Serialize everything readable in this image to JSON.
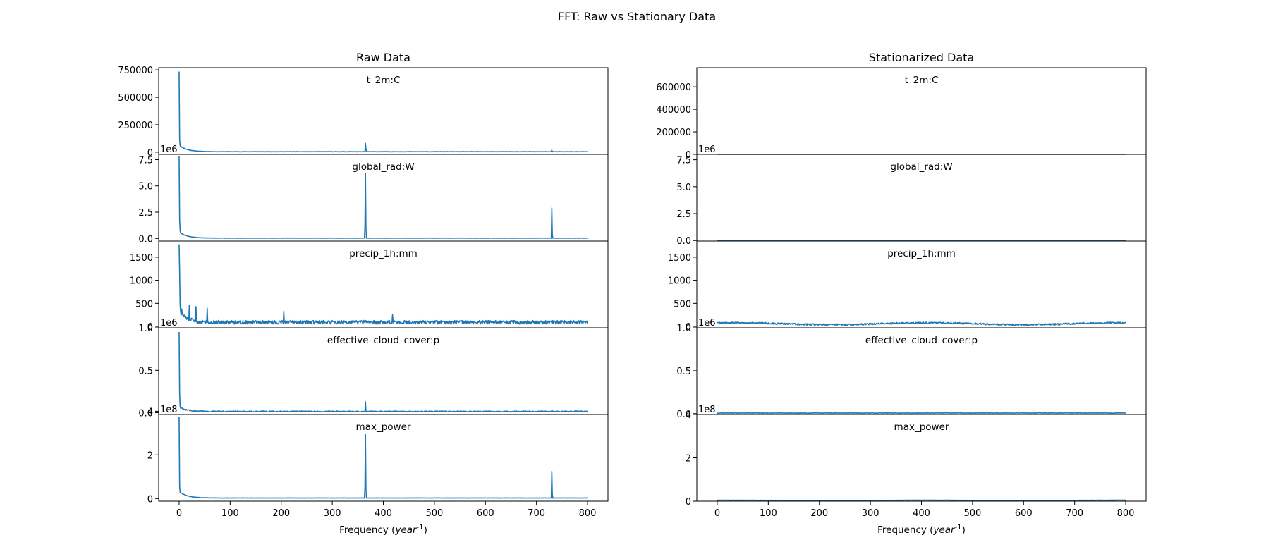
{
  "figure": {
    "suptitle": "FFT: Raw vs Stationary Data"
  },
  "chart_data": [
    {
      "type": "line",
      "title": "Raw Data",
      "xlabel": "Frequency ($year^{-1}$)",
      "xlim": [
        -40,
        840
      ],
      "xticks": [
        0,
        100,
        200,
        300,
        400,
        500,
        600,
        700,
        800
      ],
      "color": "#1f77b4",
      "panels": [
        {
          "name": "t_2m:C",
          "ylim": [
            -20000,
            770000
          ],
          "yticks": [
            0,
            250000,
            500000,
            750000
          ],
          "ytick_labels": [
            "0",
            "250000",
            "500000",
            "750000"
          ],
          "offset_label": "",
          "baseline": 3000,
          "noise": 2500,
          "decay": 60000,
          "peaks": [
            [
              0,
              735000
            ],
            [
              1,
              120000
            ],
            [
              2,
              60000
            ],
            [
              365,
              80000
            ],
            [
              366,
              30000
            ],
            [
              730,
              20000
            ]
          ]
        },
        {
          "name": "global_rad:W",
          "ylim": [
            -0.25,
            8.0
          ],
          "yticks": [
            0,
            2.5,
            5.0,
            7.5
          ],
          "ytick_labels": [
            "0.0",
            "2.5",
            "5.0",
            "7.5"
          ],
          "offset_label": "1e6",
          "baseline": 0.02,
          "noise": 0.02,
          "decay": 0.6,
          "peaks": [
            [
              0,
              7.8
            ],
            [
              1,
              1.8
            ],
            [
              2,
              0.8
            ],
            [
              365,
              6.2
            ],
            [
              364,
              1.2
            ],
            [
              366,
              1.0
            ],
            [
              730,
              2.9
            ],
            [
              731,
              0.4
            ]
          ]
        },
        {
          "name": "precip_1h:mm",
          "ylim": [
            -30,
            1850
          ],
          "yticks": [
            0,
            500,
            1000,
            1500
          ],
          "ytick_labels": [
            "0",
            "500",
            "1000",
            "1500"
          ],
          "offset_label": "",
          "baseline": 50,
          "noise": 80,
          "decay": 250,
          "peaks": [
            [
              0,
              1780
            ],
            [
              1,
              1200
            ],
            [
              2,
              450
            ],
            [
              3,
              300
            ],
            [
              5,
              380
            ],
            [
              20,
              460
            ],
            [
              33,
              430
            ],
            [
              55,
              400
            ],
            [
              205,
              330
            ],
            [
              418,
              250
            ]
          ]
        },
        {
          "name": "effective_cloud_cover:p",
          "ylim": [
            -0.02,
            1.0
          ],
          "yticks": [
            0,
            0.5,
            1.0
          ],
          "ytick_labels": [
            "0.0",
            "0.5",
            "1.0"
          ],
          "offset_label": "1e6",
          "baseline": 0.01,
          "noise": 0.012,
          "decay": 0.05,
          "peaks": [
            [
              0,
              0.95
            ],
            [
              1,
              0.22
            ],
            [
              2,
              0.08
            ],
            [
              365,
              0.13
            ],
            [
              730,
              0.03
            ]
          ]
        },
        {
          "name": "max_power",
          "ylim": [
            -0.12,
            3.85
          ],
          "yticks": [
            0,
            2,
            4
          ],
          "ytick_labels": [
            "0",
            "2",
            "4"
          ],
          "offset_label": "1e8",
          "baseline": 0.02,
          "noise": 0.012,
          "decay": 0.3,
          "peaks": [
            [
              0,
              3.75
            ],
            [
              1,
              0.55
            ],
            [
              365,
              2.95
            ],
            [
              364,
              0.5
            ],
            [
              366,
              0.4
            ],
            [
              730,
              1.25
            ],
            [
              731,
              0.2
            ]
          ]
        }
      ]
    },
    {
      "type": "line",
      "title": "Stationarized Data",
      "xlabel": "Frequency ($year^{-1}$)",
      "xlim": [
        -40,
        840
      ],
      "xticks": [
        0,
        100,
        200,
        300,
        400,
        500,
        600,
        700,
        800
      ],
      "color": "#1f77b4",
      "panels": [
        {
          "name": "t_2m:C",
          "ylim": [
            0,
            770000
          ],
          "yticks": [
            0,
            200000,
            400000,
            600000
          ],
          "ytick_labels": [
            "0",
            "200000",
            "400000",
            "600000"
          ],
          "offset_label": "",
          "baseline": 300,
          "noise": 300,
          "decay": 0,
          "peaks": []
        },
        {
          "name": "global_rad:W",
          "ylim": [
            -0.05,
            8.0
          ],
          "yticks": [
            0,
            2.5,
            5.0,
            7.5
          ],
          "ytick_labels": [
            "0.0",
            "2.5",
            "5.0",
            "7.5"
          ],
          "offset_label": "1e6",
          "baseline": 0.01,
          "noise": 0.01,
          "decay": 0,
          "peaks": []
        },
        {
          "name": "precip_1h:mm",
          "ylim": [
            -30,
            1850
          ],
          "yticks": [
            0,
            500,
            1000,
            1500
          ],
          "ytick_labels": [
            "0",
            "500",
            "1000",
            "1500"
          ],
          "offset_label": "",
          "baseline": 20,
          "noise": 35,
          "decay": 0,
          "wave": 40,
          "peaks": []
        },
        {
          "name": "effective_cloud_cover:p",
          "ylim": [
            -0.01,
            1.0
          ],
          "yticks": [
            0,
            0.5,
            1.0
          ],
          "ytick_labels": [
            "0.0",
            "0.5",
            "1.0"
          ],
          "offset_label": "1e6",
          "baseline": 0.004,
          "noise": 0.005,
          "decay": 0,
          "peaks": []
        },
        {
          "name": "max_power",
          "ylim": [
            0,
            4.0
          ],
          "yticks": [
            0,
            2,
            4
          ],
          "ytick_labels": [
            "0",
            "2",
            "4"
          ],
          "offset_label": "1e8",
          "baseline": 0.02,
          "noise": 0.012,
          "decay": 0,
          "wave": 0.02,
          "peaks": []
        }
      ]
    }
  ]
}
